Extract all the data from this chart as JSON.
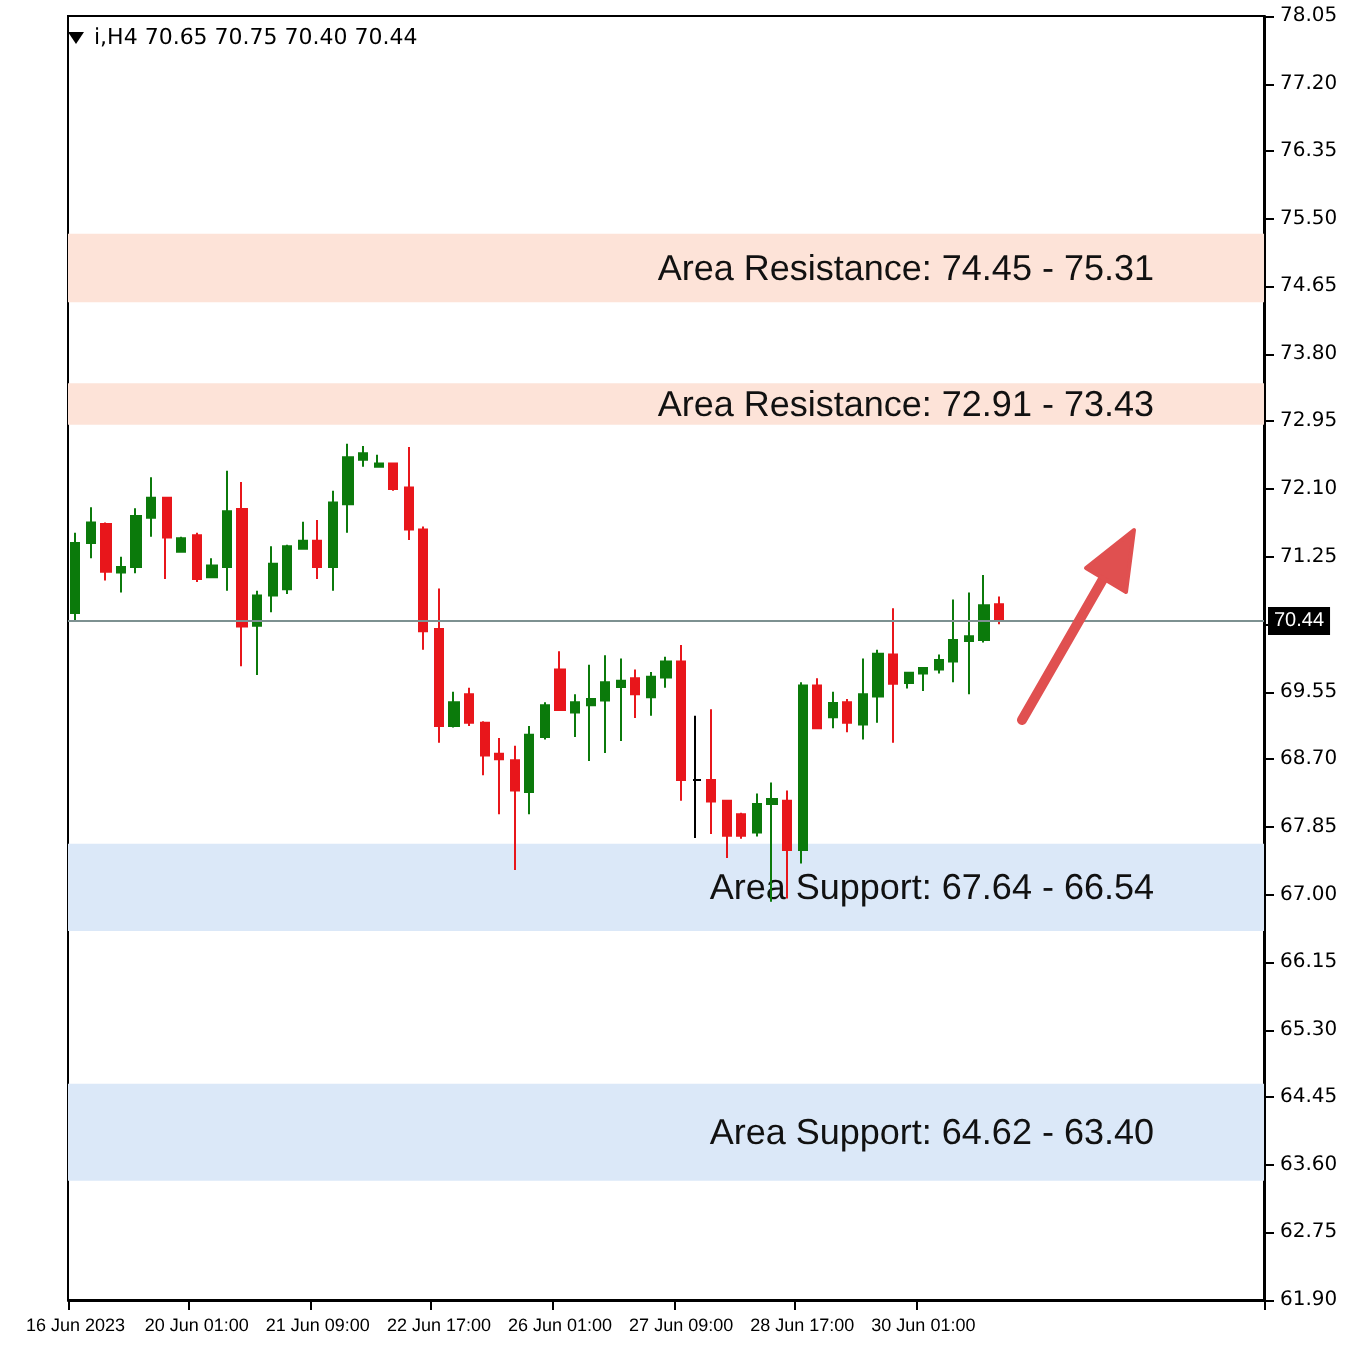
{
  "chart_data": {
    "type": "candlestick",
    "categories": [
      "16 Jun 2023",
      null,
      null,
      null,
      null,
      null,
      null,
      null,
      "20 Jun 01:00",
      null,
      null,
      null,
      null,
      null,
      null,
      null,
      "21 Jun 09:00",
      null,
      null,
      null,
      null,
      null,
      null,
      null,
      "22 Jun 17:00",
      null,
      null,
      null,
      null,
      null,
      null,
      null,
      "26 Jun 01:00",
      null,
      null,
      null,
      null,
      null,
      null,
      null,
      "27 Jun 09:00",
      null,
      null,
      null,
      null,
      null,
      null,
      null,
      "28 Jun 17:00",
      null,
      null,
      null,
      null,
      null,
      null,
      null,
      "30 Jun 01:00",
      null,
      null,
      null,
      null,
      null,
      null,
      null,
      null,
      null,
      null,
      null,
      null,
      null,
      null,
      null,
      null,
      null,
      null,
      null,
      null,
      null,
      null
    ],
    "ohlc": [
      [
        70.54,
        71.55,
        70.45,
        71.42
      ],
      [
        71.42,
        71.87,
        71.23,
        71.68
      ],
      [
        71.66,
        71.68,
        70.95,
        71.06
      ],
      [
        71.05,
        71.25,
        70.8,
        71.12
      ],
      [
        71.12,
        71.86,
        71.04,
        71.76
      ],
      [
        71.74,
        72.25,
        71.5,
        71.99
      ],
      [
        71.99,
        71.99,
        70.97,
        71.49
      ],
      [
        71.31,
        71.5,
        71.31,
        71.48
      ],
      [
        71.52,
        71.55,
        70.93,
        70.97
      ],
      [
        70.99,
        71.23,
        70.98,
        71.14
      ],
      [
        71.12,
        72.33,
        70.82,
        71.82
      ],
      [
        71.85,
        72.19,
        69.87,
        70.37
      ],
      [
        70.38,
        70.82,
        69.76,
        70.76
      ],
      [
        70.76,
        71.38,
        70.55,
        71.16
      ],
      [
        70.84,
        71.4,
        70.78,
        71.38
      ],
      [
        71.35,
        71.69,
        71.34,
        71.45
      ],
      [
        71.45,
        71.71,
        70.97,
        71.12
      ],
      [
        71.12,
        72.08,
        70.82,
        71.93
      ],
      [
        71.91,
        72.67,
        71.55,
        72.5
      ],
      [
        72.47,
        72.64,
        72.38,
        72.55
      ],
      [
        72.38,
        72.53,
        72.37,
        72.42
      ],
      [
        72.42,
        72.42,
        72.08,
        72.1
      ],
      [
        72.12,
        72.63,
        71.46,
        71.59
      ],
      [
        71.59,
        71.63,
        70.08,
        70.31
      ],
      [
        70.34,
        70.85,
        68.91,
        69.12
      ],
      [
        69.12,
        69.55,
        69.1,
        69.42
      ],
      [
        69.52,
        69.6,
        69.12,
        69.16
      ],
      [
        69.16,
        69.18,
        68.5,
        68.75
      ],
      [
        68.77,
        68.97,
        68.01,
        68.7
      ],
      [
        68.69,
        68.87,
        67.31,
        68.31
      ],
      [
        68.29,
        69.12,
        68.01,
        69.01
      ],
      [
        68.98,
        69.42,
        68.95,
        69.38
      ],
      [
        69.83,
        70.06,
        69.31,
        69.32
      ],
      [
        69.29,
        69.52,
        68.98,
        69.42
      ],
      [
        69.38,
        69.89,
        68.68,
        69.46
      ],
      [
        69.44,
        70.01,
        68.78,
        69.67
      ],
      [
        69.61,
        69.97,
        68.93,
        69.69
      ],
      [
        69.72,
        69.83,
        69.22,
        69.52
      ],
      [
        69.48,
        69.8,
        69.25,
        69.74
      ],
      [
        69.73,
        69.99,
        69.6,
        69.93
      ],
      [
        69.93,
        70.14,
        68.18,
        68.44
      ],
      [
        68.44,
        69.25,
        67.71,
        68.44
      ],
      [
        68.44,
        69.33,
        67.76,
        68.17
      ],
      [
        68.18,
        68.18,
        67.46,
        67.74
      ],
      [
        68.01,
        68.03,
        67.7,
        67.74
      ],
      [
        67.78,
        68.27,
        67.73,
        68.14
      ],
      [
        68.14,
        68.41,
        66.91,
        68.2
      ],
      [
        68.18,
        68.31,
        66.95,
        67.56
      ],
      [
        67.56,
        69.67,
        67.39,
        69.63
      ],
      [
        69.63,
        69.72,
        69.08,
        69.09
      ],
      [
        69.23,
        69.55,
        69.09,
        69.41
      ],
      [
        69.42,
        69.46,
        69.04,
        69.16
      ],
      [
        69.14,
        69.97,
        68.95,
        69.52
      ],
      [
        69.49,
        70.08,
        69.16,
        70.03
      ],
      [
        70.02,
        70.6,
        68.91,
        69.65
      ],
      [
        69.66,
        69.8,
        69.59,
        69.79
      ],
      [
        69.78,
        69.86,
        69.56,
        69.85
      ],
      [
        69.83,
        70.02,
        69.78,
        69.95
      ],
      [
        69.93,
        70.71,
        69.67,
        70.2
      ],
      [
        70.19,
        70.8,
        69.52,
        70.25
      ],
      [
        70.2,
        71.02,
        70.17,
        70.64
      ],
      [
        70.65,
        70.75,
        70.4,
        70.44
      ],
      null,
      null,
      null,
      null,
      null,
      null,
      null,
      null,
      null,
      null,
      null,
      null,
      null,
      null,
      null,
      null,
      null
    ],
    "colors": [
      "#0b7a0b",
      "#0b7a0b",
      "#e8161b",
      "#0b7a0b",
      "#0b7a0b",
      "#0b7a0b",
      "#e8161b",
      "#0b7a0b",
      "#e8161b",
      "#0b7a0b",
      "#0b7a0b",
      "#e8161b",
      "#0b7a0b",
      "#0b7a0b",
      "#0b7a0b",
      "#0b7a0b",
      "#e8161b",
      "#0b7a0b",
      "#0b7a0b",
      "#0b7a0b",
      "#0b7a0b",
      "#e8161b",
      "#e8161b",
      "#e8161b",
      "#e8161b",
      "#0b7a0b",
      "#e8161b",
      "#e8161b",
      "#e8161b",
      "#e8161b",
      "#0b7a0b",
      "#0b7a0b",
      "#e8161b",
      "#0b7a0b",
      "#0b7a0b",
      "#0b7a0b",
      "#0b7a0b",
      "#e8161b",
      "#0b7a0b",
      "#0b7a0b",
      "#e8161b",
      "#000000",
      "#e8161b",
      "#e8161b",
      "#e8161b",
      "#0b7a0b",
      "#0b7a0b",
      "#e8161b",
      "#0b7a0b",
      "#e8161b",
      "#0b7a0b",
      "#e8161b",
      "#0b7a0b",
      "#0b7a0b",
      "#e8161b",
      "#0b7a0b",
      "#0b7a0b",
      "#0b7a0b",
      "#0b7a0b",
      "#0b7a0b",
      "#0b7a0b",
      "#e8161b",
      null,
      null,
      null,
      null,
      null,
      null,
      null,
      null,
      null,
      null,
      null,
      null,
      null,
      null,
      null,
      null,
      null
    ],
    "ylim": [
      61.9,
      78.05
    ],
    "yticks": [
      {
        "value": 61.9,
        "label": "61.90"
      },
      {
        "value": 62.75,
        "label": "62.75"
      },
      {
        "value": 63.6,
        "label": "63.60"
      },
      {
        "value": 64.45,
        "label": "64.45"
      },
      {
        "value": 65.3,
        "label": "65.30"
      },
      {
        "value": 66.15,
        "label": "66.15"
      },
      {
        "value": 67.0,
        "label": "67.00"
      },
      {
        "value": 67.85,
        "label": "67.85"
      },
      {
        "value": 68.7,
        "label": "68.70"
      },
      {
        "value": 69.55,
        "label": "69.55"
      },
      {
        "value": 70.4,
        "label": null
      },
      {
        "value": 71.25,
        "label": "71.25"
      },
      {
        "value": 72.1,
        "label": "72.10"
      },
      {
        "value": 72.95,
        "label": "72.95"
      },
      {
        "value": 73.8,
        "label": "73.80"
      },
      {
        "value": 74.65,
        "label": "74.65"
      },
      {
        "value": 75.5,
        "label": "75.50"
      },
      {
        "value": 76.35,
        "label": "76.35"
      },
      {
        "value": 77.2,
        "label": "77.20"
      },
      {
        "value": 78.05,
        "label": "78.05"
      }
    ],
    "ref_lines": [
      {
        "axis": "y",
        "value": 70.44,
        "label": "70.44",
        "color": "#7d9191"
      }
    ],
    "bands": [
      {
        "axis": "y",
        "from": 74.45,
        "to": 75.31,
        "label": "Area Resistance: 74.45 - 75.31",
        "color": "#fde3d8"
      },
      {
        "axis": "y",
        "from": 72.91,
        "to": 73.43,
        "label": "Area Resistance: 72.91 - 73.43",
        "color": "#fde3d8"
      },
      {
        "axis": "y",
        "from": 66.54,
        "to": 67.64,
        "label": "Area Support: 67.64 - 66.54",
        "color": "#dbe8f8"
      },
      {
        "axis": "y",
        "from": 63.4,
        "to": 64.62,
        "label": "Area Support: 64.62 - 63.40",
        "color": "#dbe8f8"
      }
    ],
    "annotations": [
      "i,H4 70.65 70.75 70.40 70.44"
    ],
    "grid": false
  }
}
